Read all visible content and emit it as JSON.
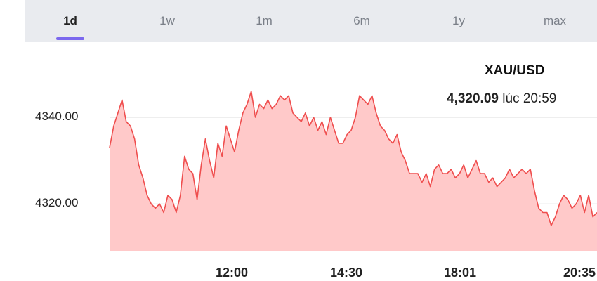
{
  "tabs": [
    {
      "label": "1d",
      "active": true
    },
    {
      "label": "1w",
      "active": false
    },
    {
      "label": "1m",
      "active": false
    },
    {
      "label": "6m",
      "active": false
    },
    {
      "label": "1y",
      "active": false
    },
    {
      "label": "max",
      "active": false
    }
  ],
  "header": {
    "pair": "XAU/USD",
    "price": "4,320.09",
    "time_prefix": "lúc",
    "time": "20:59"
  },
  "colors": {
    "line": "#ef4e4e",
    "fill": "#ffc9c9",
    "accent": "#7b68ee"
  },
  "chart_data": {
    "type": "area",
    "title": "",
    "xlabel": "",
    "ylabel": "",
    "x_ticks": [
      "12:00",
      "14:30",
      "18:01",
      "20:35"
    ],
    "y_ticks": [
      "4340.00",
      "4320.00"
    ],
    "y_tick_values": [
      4340,
      4320
    ],
    "ylim": [
      4309,
      4346
    ],
    "grid": true,
    "series": [
      {
        "values": [
          4333,
          4338,
          4341,
          4344,
          4339,
          4338,
          4335,
          4329,
          4326,
          4322,
          4320,
          4319,
          4320,
          4318,
          4322,
          4321,
          4318,
          4322,
          4331,
          4328,
          4327,
          4321,
          4329,
          4335,
          4330,
          4326,
          4334,
          4331,
          4338,
          4335,
          4332,
          4337,
          4341,
          4343,
          4346,
          4340,
          4343,
          4342,
          4344,
          4342,
          4343,
          4345,
          4344,
          4345,
          4341,
          4340,
          4339,
          4341,
          4338,
          4340,
          4337,
          4339,
          4336,
          4340,
          4337,
          4334,
          4334,
          4336,
          4337,
          4340,
          4345,
          4344,
          4343,
          4345,
          4341,
          4338,
          4337,
          4335,
          4334,
          4336,
          4332,
          4330,
          4327,
          4327,
          4327,
          4325,
          4327,
          4324,
          4328,
          4329,
          4327,
          4327,
          4328,
          4326,
          4327,
          4329,
          4326,
          4328,
          4330,
          4327,
          4327,
          4325,
          4326,
          4324,
          4325,
          4326,
          4328,
          4326,
          4327,
          4328,
          4327,
          4328,
          4323,
          4319,
          4318,
          4318,
          4315,
          4317,
          4320,
          4322,
          4321,
          4319,
          4320,
          4322,
          4318,
          4322,
          4317,
          4318
        ]
      }
    ]
  }
}
